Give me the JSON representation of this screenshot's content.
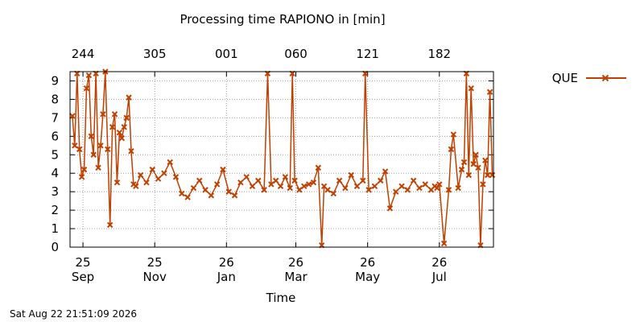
{
  "chart_data": {
    "type": "line",
    "title": "Processing time RAPIONO in [min]",
    "xlabel": "Time",
    "ylabel": "",
    "ylim": [
      0,
      9.5
    ],
    "yticks": [
      0,
      1,
      2,
      3,
      4,
      5,
      6,
      7,
      8,
      9
    ],
    "xlim": [
      "2025-08-21",
      "2026-08-16"
    ],
    "grid": true,
    "legend_position": "top-right, outside plot",
    "x_ticks_bottom": [
      {
        "date": "2025-09-01",
        "label": "25",
        "label2": "Sep"
      },
      {
        "date": "2025-11-01",
        "label": "25",
        "label2": "Nov"
      },
      {
        "date": "2026-01-01",
        "label": "26",
        "label2": "Jan"
      },
      {
        "date": "2026-03-01",
        "label": "26",
        "label2": "Mar"
      },
      {
        "date": "2026-05-01",
        "label": "26",
        "label2": "May"
      },
      {
        "date": "2026-07-01",
        "label": "26",
        "label2": "Jul"
      }
    ],
    "x_ticks_top": [
      {
        "date": "2025-09-01",
        "label": "244"
      },
      {
        "date": "2025-11-01",
        "label": "305"
      },
      {
        "date": "2026-01-01",
        "label": "001"
      },
      {
        "date": "2026-03-01",
        "label": "060"
      },
      {
        "date": "2026-05-01",
        "label": "121"
      },
      {
        "date": "2026-07-01",
        "label": "182"
      }
    ],
    "series": [
      {
        "name": "QUE",
        "color": "#c04000",
        "marker": "x",
        "x": [
          "2025-08-23",
          "2025-08-25",
          "2025-08-27",
          "2025-08-29",
          "2025-08-31",
          "2025-09-02",
          "2025-09-04",
          "2025-09-06",
          "2025-09-08",
          "2025-09-10",
          "2025-09-12",
          "2025-09-14",
          "2025-09-16",
          "2025-09-18",
          "2025-09-20",
          "2025-09-22",
          "2025-09-24",
          "2025-09-26",
          "2025-09-28",
          "2025-09-30",
          "2025-10-02",
          "2025-10-04",
          "2025-10-06",
          "2025-10-08",
          "2025-10-10",
          "2025-10-12",
          "2025-10-14",
          "2025-10-16",
          "2025-10-20",
          "2025-10-25",
          "2025-10-30",
          "2025-11-04",
          "2025-11-09",
          "2025-11-14",
          "2025-11-19",
          "2025-11-24",
          "2025-11-29",
          "2025-12-04",
          "2025-12-09",
          "2025-12-14",
          "2025-12-19",
          "2025-12-24",
          "2025-12-29",
          "2026-01-03",
          "2026-01-08",
          "2026-01-13",
          "2026-01-18",
          "2026-01-23",
          "2026-01-28",
          "2026-02-02",
          "2026-02-05",
          "2026-02-08",
          "2026-02-12",
          "2026-02-16",
          "2026-02-20",
          "2026-02-24",
          "2026-02-26",
          "2026-02-28",
          "2026-03-04",
          "2026-03-08",
          "2026-03-12",
          "2026-03-16",
          "2026-03-20",
          "2026-03-23",
          "2026-03-25",
          "2026-03-28",
          "2026-04-02",
          "2026-04-07",
          "2026-04-12",
          "2026-04-17",
          "2026-04-22",
          "2026-04-27",
          "2026-04-29",
          "2026-05-02",
          "2026-05-07",
          "2026-05-12",
          "2026-05-16",
          "2026-05-20",
          "2026-05-25",
          "2026-05-30",
          "2026-06-04",
          "2026-06-09",
          "2026-06-14",
          "2026-06-19",
          "2026-06-24",
          "2026-06-27",
          "2026-06-29",
          "2026-07-01",
          "2026-07-05",
          "2026-07-09",
          "2026-07-11",
          "2026-07-13",
          "2026-07-17",
          "2026-07-20",
          "2026-07-22",
          "2026-07-24",
          "2026-07-26",
          "2026-07-28",
          "2026-07-30",
          "2026-08-01",
          "2026-08-03",
          "2026-08-05",
          "2026-08-07",
          "2026-08-09",
          "2026-08-11",
          "2026-08-13",
          "2026-08-15"
        ],
        "values": [
          7.1,
          5.5,
          9.4,
          5.3,
          3.8,
          4.2,
          8.6,
          9.3,
          6.0,
          5.0,
          9.4,
          4.3,
          5.5,
          7.2,
          9.5,
          5.3,
          1.2,
          6.5,
          7.2,
          3.5,
          6.2,
          5.9,
          6.5,
          7.0,
          8.1,
          5.2,
          3.4,
          3.3,
          3.9,
          3.5,
          4.2,
          3.7,
          4.0,
          4.6,
          3.8,
          2.9,
          2.7,
          3.2,
          3.6,
          3.1,
          2.8,
          3.4,
          4.2,
          3.0,
          2.8,
          3.5,
          3.8,
          3.3,
          3.6,
          3.1,
          9.4,
          3.4,
          3.6,
          3.3,
          3.8,
          3.2,
          9.4,
          3.6,
          3.1,
          3.3,
          3.4,
          3.5,
          4.3,
          0.1,
          3.3,
          3.1,
          2.9,
          3.6,
          3.2,
          3.9,
          3.3,
          3.6,
          9.4,
          3.1,
          3.3,
          3.6,
          4.1,
          2.1,
          3.0,
          3.3,
          3.1,
          3.6,
          3.2,
          3.4,
          3.1,
          3.3,
          3.2,
          3.4,
          0.2,
          3.1,
          5.3,
          6.1,
          3.2,
          4.2,
          4.6,
          9.4,
          3.9,
          8.6,
          4.5,
          5.0,
          4.3,
          0.1,
          3.4,
          4.7,
          3.9,
          8.4,
          3.9
        ]
      }
    ]
  },
  "footer": {
    "timestamp": "Sat Aug 22 21:51:09 2026"
  }
}
